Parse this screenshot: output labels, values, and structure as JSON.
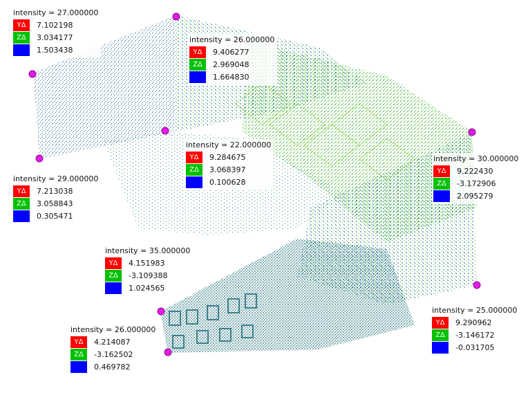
{
  "colors": {
    "y_axis": "#ff0000",
    "z_axis": "#00c000",
    "third_axis": "#0000ff",
    "marker": "#e21ce6",
    "cloud_dark": "#1f5f8e",
    "cloud_green": "#3bc43b",
    "cloud_light": "#b6e21c"
  },
  "cards": [
    {
      "title": "intensity = 27.000000",
      "y_label": "YΔ",
      "z_label": "ZΔ",
      "y": "7.102198",
      "z": "3.034177",
      "third": "1.503438"
    },
    {
      "title": "intensity = 26.000000",
      "y_label": "YΔ",
      "z_label": "ZΔ",
      "y": "9.406277",
      "z": "2.969048",
      "third": "1.664830"
    },
    {
      "title": "intensity = 22.000000",
      "y_label": "YΔ",
      "z_label": "ZΔ",
      "y": "9.284675",
      "z": "3.068397",
      "third": "0.100628"
    },
    {
      "title": "intensity = 29.000000",
      "y_label": "YΔ",
      "z_label": "ZΔ",
      "y": "7.213038",
      "z": "3.058843",
      "third": "0.305471"
    },
    {
      "title": "intensity = 30.000000",
      "y_label": "YΔ",
      "z_label": "ZΔ",
      "y": "9.222430",
      "z": "-3.172906",
      "third": "2.095279"
    },
    {
      "title": "intensity = 35.000000",
      "y_label": "YΔ",
      "z_label": "ZΔ",
      "y": "4.151983",
      "z": "-3.109388",
      "third": "1.024565"
    },
    {
      "title": "intensity = 25.000000",
      "y_label": "YΔ",
      "z_label": "ZΔ",
      "y": "9.290962",
      "z": "-3.146172",
      "third": "-0.031705"
    },
    {
      "title": "intensity = 26.000000",
      "y_label": "YΔ",
      "z_label": "ZΔ",
      "y": "4.214087",
      "z": "-3.162502",
      "third": "0.469782"
    }
  ]
}
